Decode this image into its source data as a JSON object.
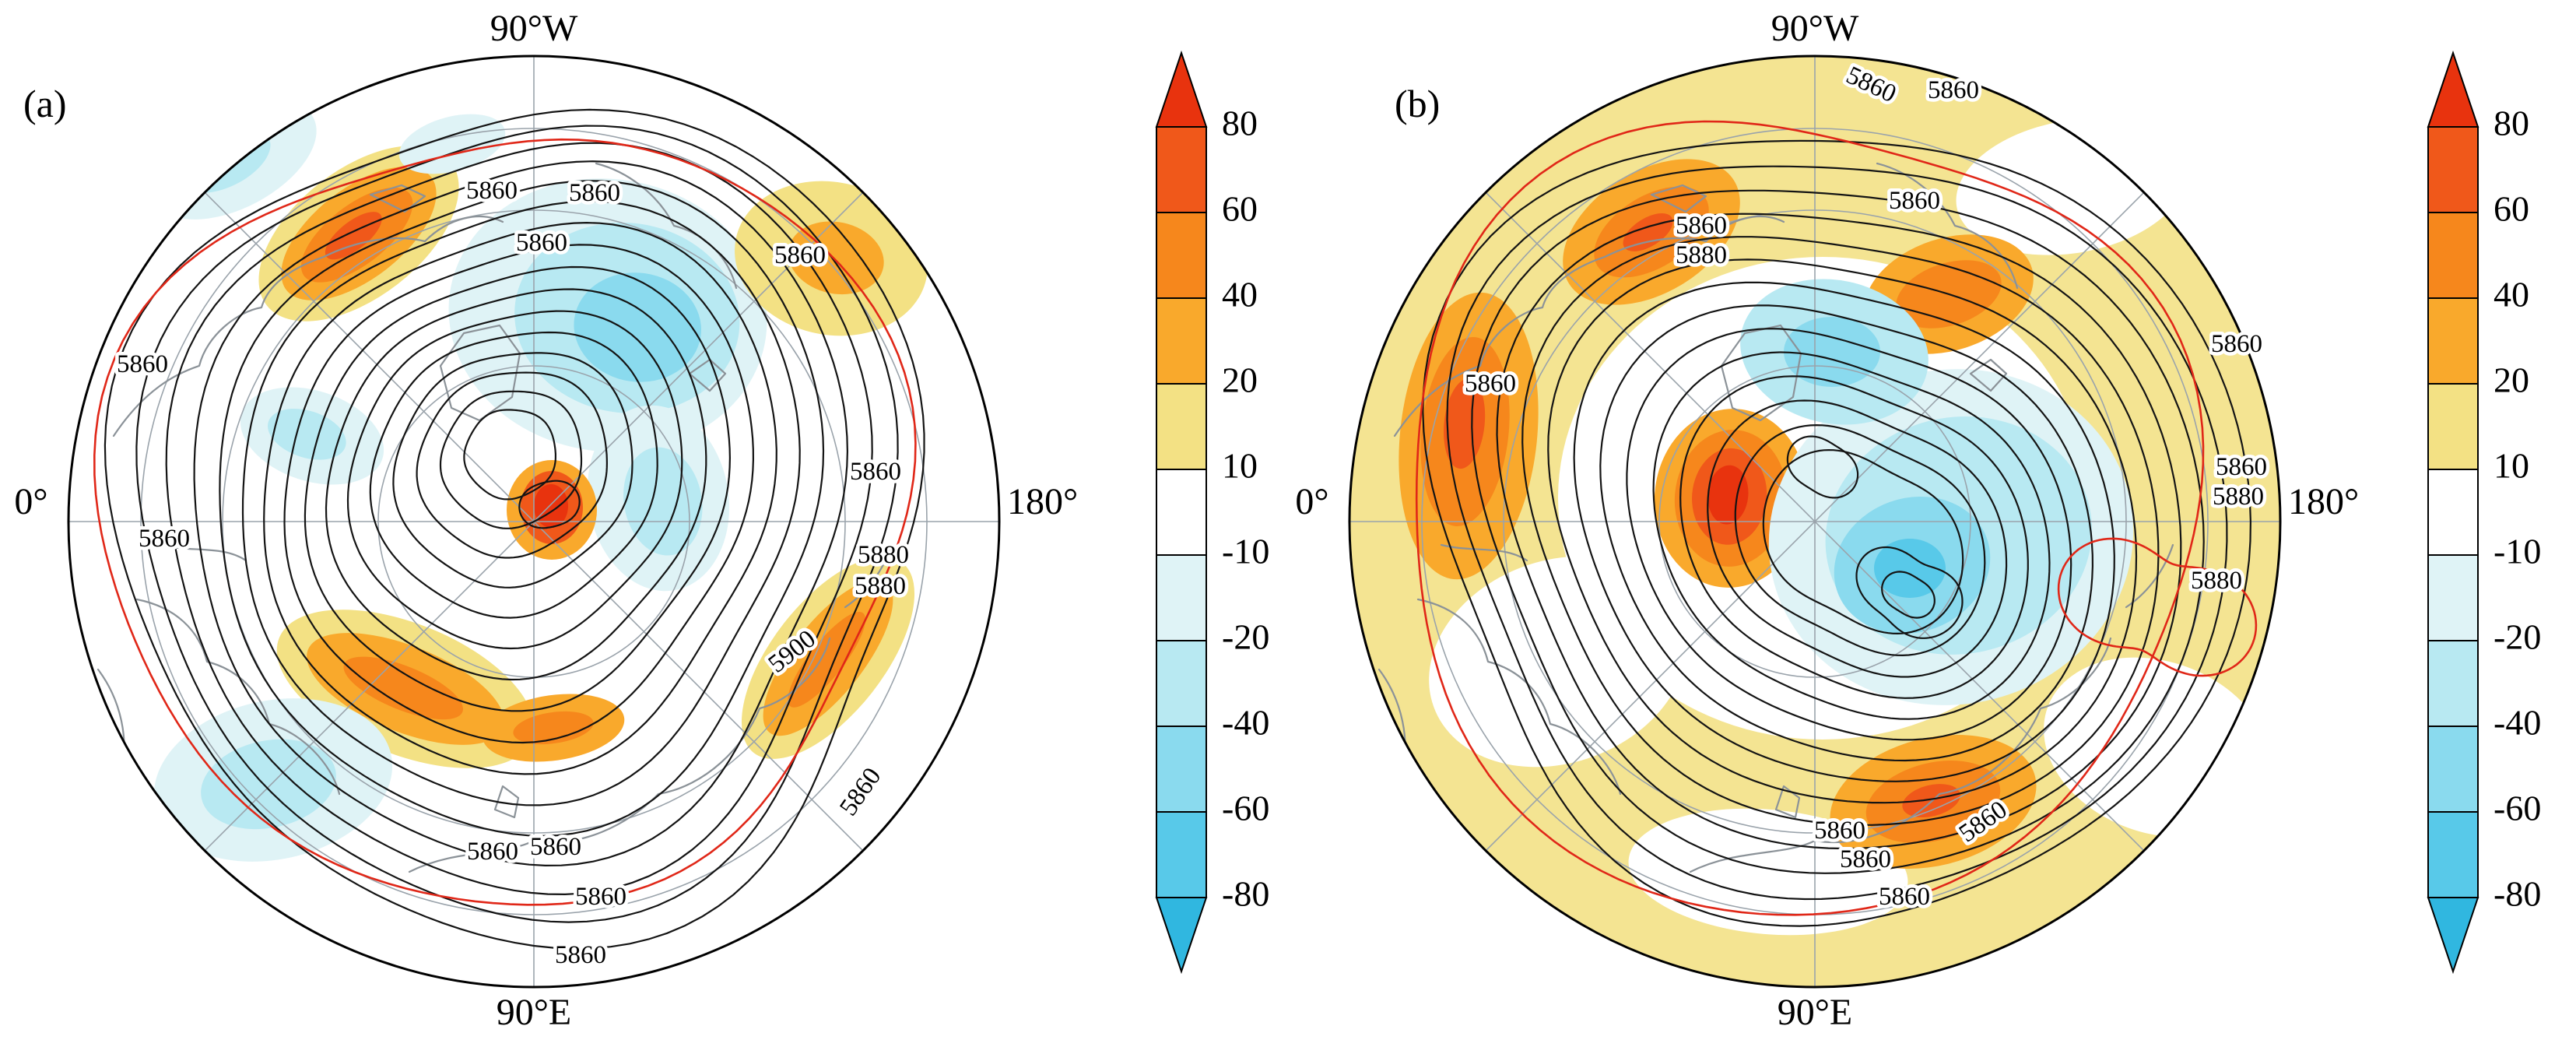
{
  "figure": {
    "panels": [
      {
        "panel_label": "(a)",
        "axis": {
          "top": "90°W",
          "bottom": "90°E",
          "left": "0°",
          "right": "180°"
        },
        "contour_labels": [
          {
            "text": "5860"
          },
          {
            "text": "5860"
          },
          {
            "text": "5860"
          },
          {
            "text": "5860"
          },
          {
            "text": "5860"
          },
          {
            "text": "5860"
          },
          {
            "text": "5860"
          },
          {
            "text": "5880"
          },
          {
            "text": "5880"
          },
          {
            "text": "5900"
          },
          {
            "text": "5860"
          },
          {
            "text": "5860"
          },
          {
            "text": "5860"
          },
          {
            "text": "5860"
          },
          {
            "text": "5860"
          }
        ]
      },
      {
        "panel_label": "(b)",
        "axis": {
          "top": "90°W",
          "bottom": "90°E",
          "left": "0°",
          "right": "180°"
        },
        "contour_labels": [
          {
            "text": "5860"
          },
          {
            "text": "5860"
          },
          {
            "text": "5860"
          },
          {
            "text": "5860"
          },
          {
            "text": "5880"
          },
          {
            "text": "5860"
          },
          {
            "text": "5860"
          },
          {
            "text": "5880"
          },
          {
            "text": "5880"
          },
          {
            "text": "5860"
          },
          {
            "text": "5860"
          },
          {
            "text": "5860"
          },
          {
            "text": "5860"
          },
          {
            "text": "5860"
          }
        ]
      }
    ],
    "colorbar": {
      "ticks": [
        "80",
        "60",
        "40",
        "20",
        "10",
        "-10",
        "-20",
        "-40",
        "-60",
        "-80"
      ]
    }
  },
  "chart_data": {
    "type": "heatmap",
    "subtype": "north-polar-stereographic-contour-maps",
    "description": "Two polar stereographic Northern Hemisphere maps. Black contours show geopotential height (labeled values in the 5860-5900 range), a red contour highlights the 5860 line, gray lines are graticule and coastlines, and shading shows anomalies keyed to the colorbar.",
    "panels": [
      {
        "label": "(a)",
        "meridian_labels": {
          "top": "90°W",
          "left": "0°",
          "right": "180°",
          "bottom": "90°E"
        },
        "black_contour_labeled_values": [
          5860,
          5880,
          5900
        ],
        "red_contour_present": true,
        "shading": "positive anomalies warm (yellow/orange/red), negative anomalies cool (cyan/blue)"
      },
      {
        "label": "(b)",
        "meridian_labels": {
          "top": "90°W",
          "left": "0°",
          "right": "180°",
          "bottom": "90°E"
        },
        "black_contour_labeled_values": [
          5860,
          5880
        ],
        "red_contour_present": true,
        "shading": "widespread weak positive (pale yellow) background with strong positive core west of pole and strong negative core east of pole"
      }
    ],
    "colorbar": {
      "orientation": "vertical",
      "extends": "both",
      "tick_values": [
        80,
        60,
        40,
        20,
        10,
        -10,
        -20,
        -40,
        -60,
        -80
      ],
      "cell_colors_top_to_bottom": [
        "#f0581a",
        "#f6871c",
        "#f9a92c",
        "#f3e184",
        "#ffffff",
        "#dff3f6",
        "#b8e9f2",
        "#8adaee",
        "#58c9e9"
      ],
      "top_arrow_color": "#e8330e",
      "bottom_arrow_color": "#30b7e0"
    }
  }
}
